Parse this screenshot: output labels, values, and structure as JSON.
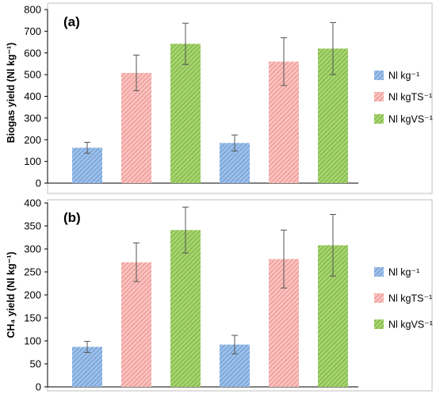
{
  "chart_data": [
    {
      "type": "bar",
      "panel_label": "(a)",
      "ylabel": "Biogas yield (Nl kg⁻¹)",
      "ylim": [
        0,
        800
      ],
      "yticks": [
        0,
        100,
        200,
        300,
        400,
        500,
        600,
        700,
        800
      ],
      "legend_position": "right",
      "series": [
        {
          "name": "Nl kg⁻¹",
          "color": "#7aa7dc",
          "pattern": "hatch-blue"
        },
        {
          "name": "Nl kgTS⁻¹",
          "color": "#f4a09c",
          "pattern": "hatch-red"
        },
        {
          "name": "Nl kgVS⁻¹",
          "color": "#8cc152",
          "pattern": "hatch-green"
        }
      ],
      "bars": [
        {
          "series": 0,
          "value": 163,
          "err": 25
        },
        {
          "series": 1,
          "value": 508,
          "err": 82
        },
        {
          "series": 2,
          "value": 642,
          "err": 95
        },
        {
          "series": 0,
          "value": 185,
          "err": 37
        },
        {
          "series": 1,
          "value": 560,
          "err": 110
        },
        {
          "series": 2,
          "value": 620,
          "err": 120
        }
      ]
    },
    {
      "type": "bar",
      "panel_label": "(b)",
      "ylabel": "CH₄ yield (Nl kg⁻¹)",
      "ylim": [
        0,
        400
      ],
      "yticks": [
        0,
        50,
        100,
        150,
        200,
        250,
        300,
        350,
        400
      ],
      "legend_position": "right",
      "series": [
        {
          "name": "Nl kg⁻¹",
          "color": "#7aa7dc",
          "pattern": "hatch-blue"
        },
        {
          "name": "Nl kgTS⁻¹",
          "color": "#f4a09c",
          "pattern": "hatch-red"
        },
        {
          "name": "Nl kgVS⁻¹",
          "color": "#8cc152",
          "pattern": "hatch-green"
        }
      ],
      "bars": [
        {
          "series": 0,
          "value": 87,
          "err": 12
        },
        {
          "series": 1,
          "value": 271,
          "err": 42
        },
        {
          "series": 2,
          "value": 341,
          "err": 50
        },
        {
          "series": 0,
          "value": 92,
          "err": 20
        },
        {
          "series": 1,
          "value": 278,
          "err": 63
        },
        {
          "series": 2,
          "value": 308,
          "err": 67
        }
      ]
    }
  ]
}
